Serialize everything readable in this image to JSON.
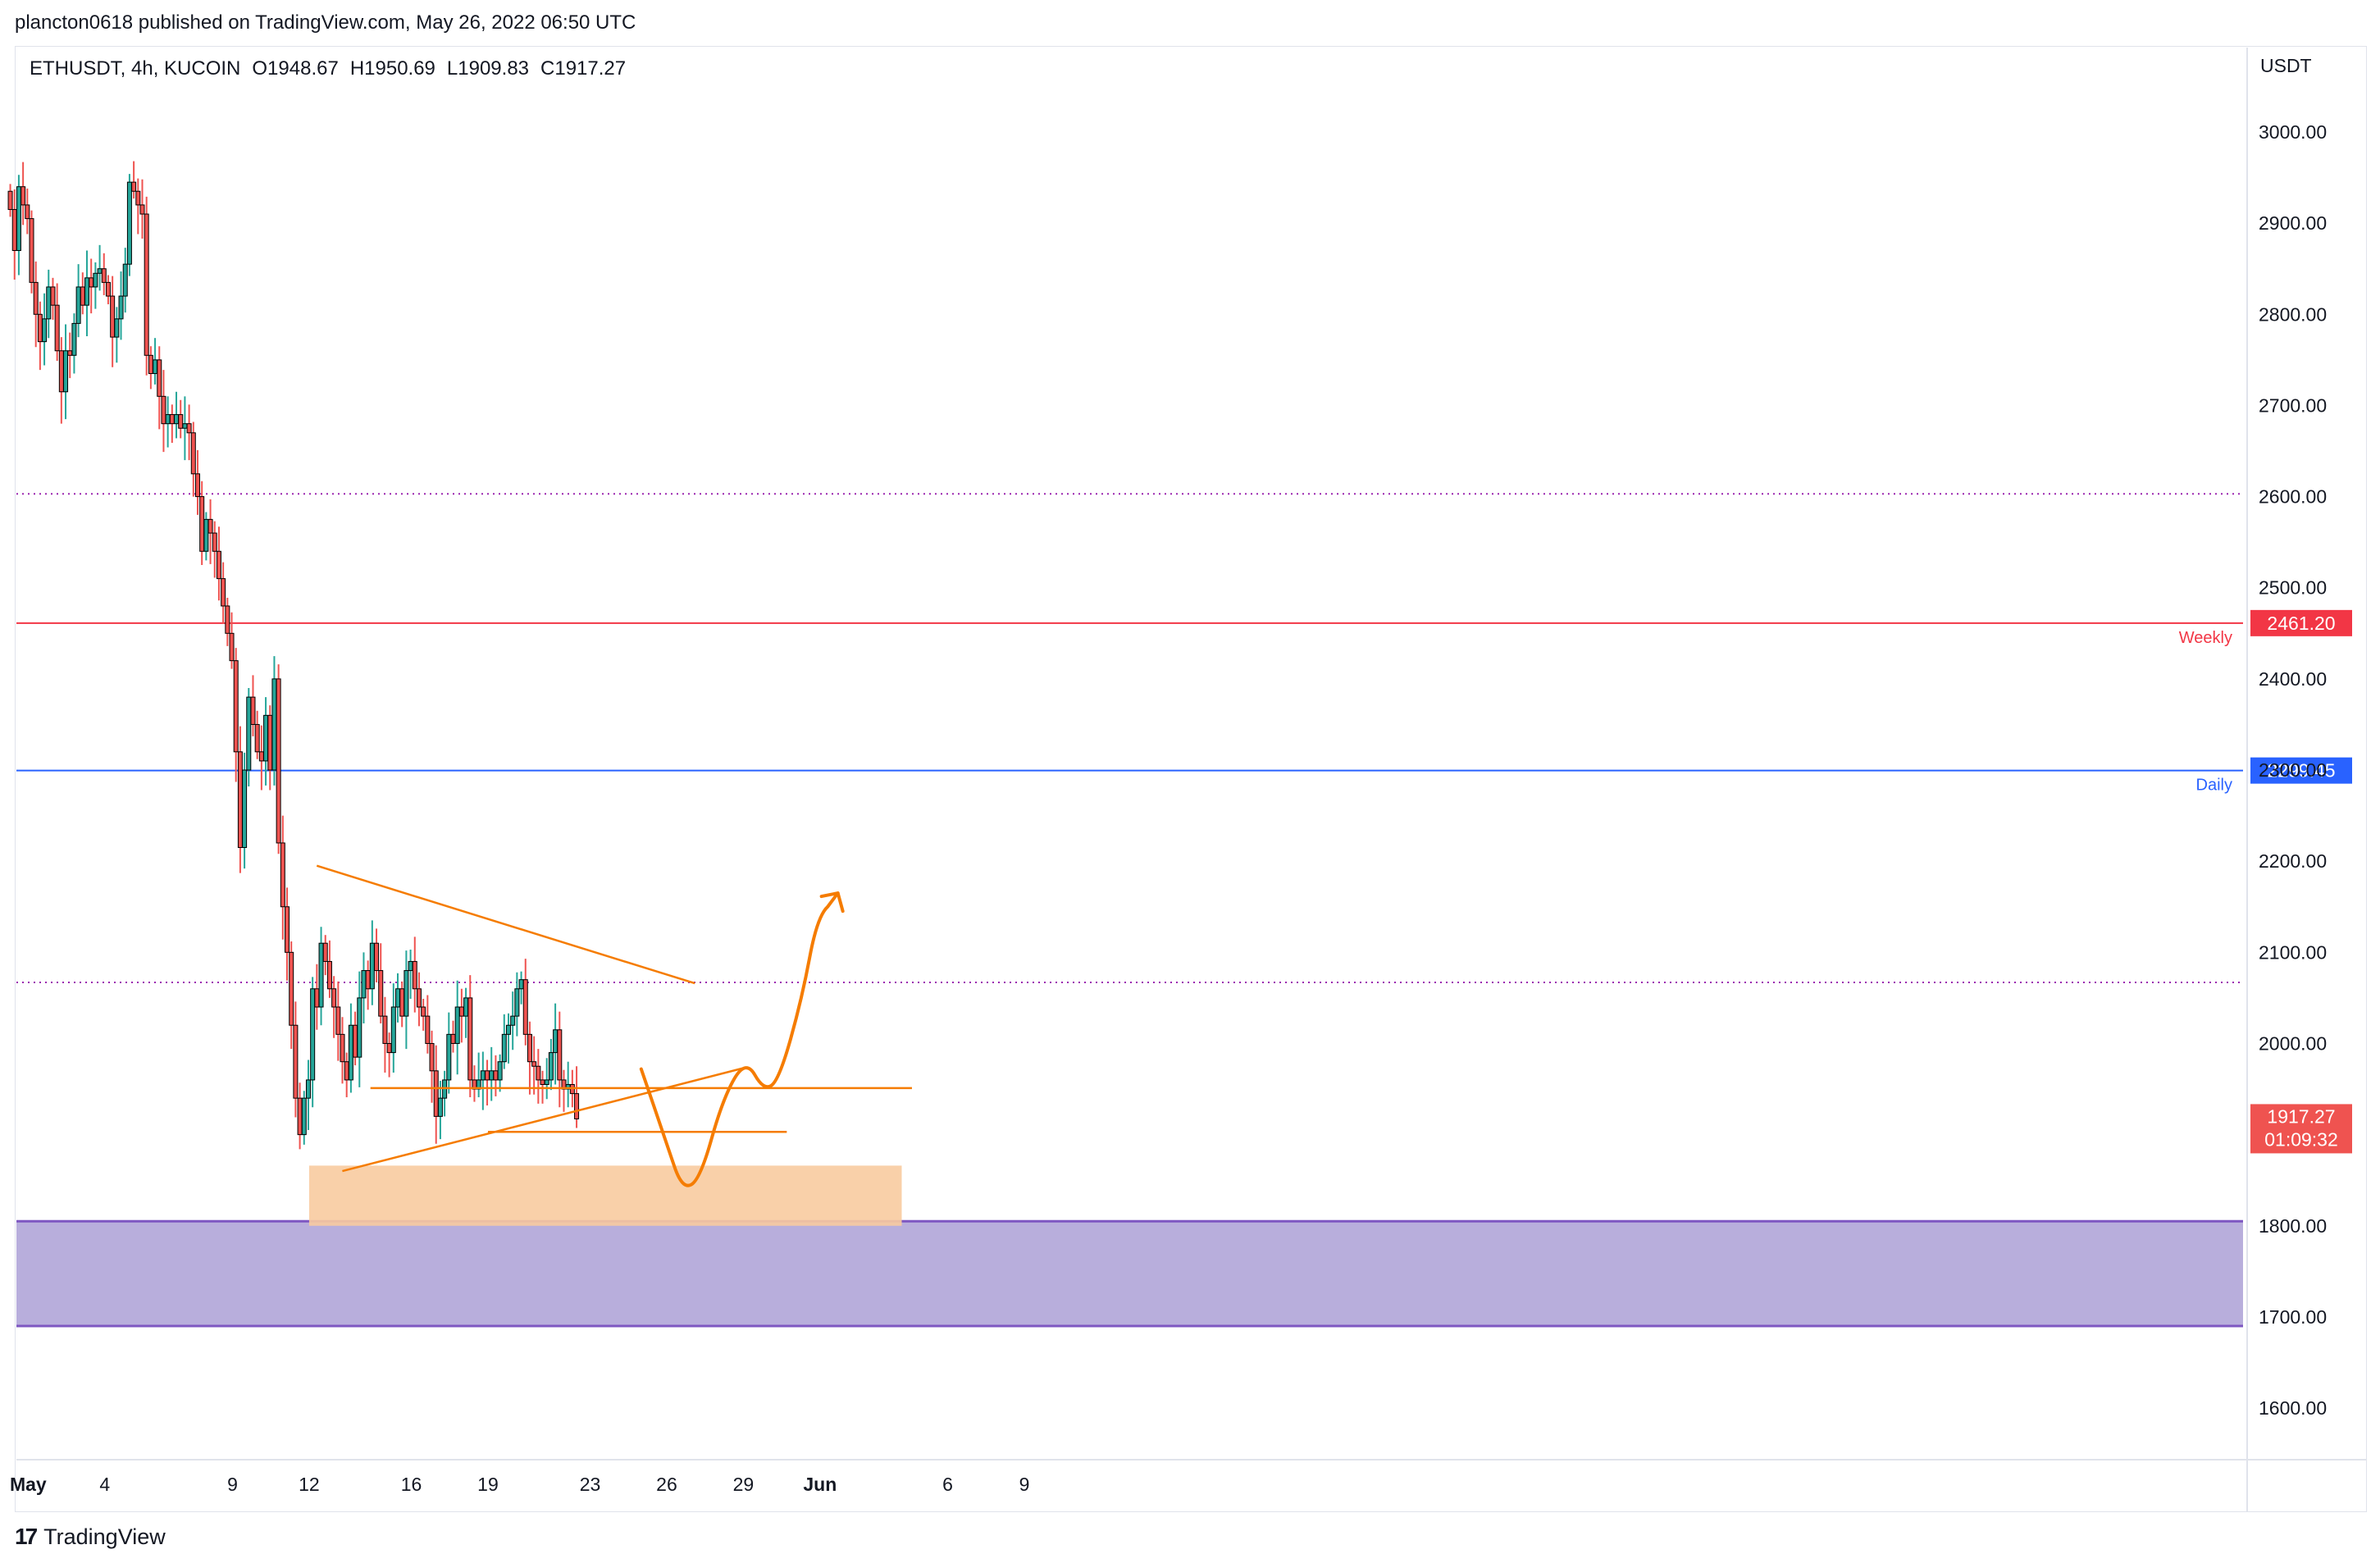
{
  "publisher_line": "plancton0618 published on TradingView.com, May 26, 2022 06:50 UTC",
  "symbol_info": {
    "symbol": "ETHUSDT, 4h, KUCOIN",
    "open": "O1948.67",
    "high": "H1950.69",
    "low": "L1909.83",
    "close": "C1917.27"
  },
  "brand": "TradingView",
  "colors": {
    "up": "#26a69a",
    "down": "#ef5350",
    "candle_border": "#000000",
    "weekly": "#f23645",
    "daily": "#2962ff",
    "annotation": "#f57c00",
    "demand_zone": "#f8cba0",
    "support_zone": "#b0a5d8",
    "dotted_level": "#9c27b0"
  },
  "chart_data": {
    "type": "candlestick",
    "title": "ETHUSDT, 4h, KUCOIN",
    "ylabel": "USDT",
    "ylim": [
      1540,
      3090
    ],
    "y_ticks": [
      "3000.00",
      "2900.00",
      "2800.00",
      "2700.00",
      "2600.00",
      "2500.00",
      "2400.00",
      "2300.00",
      "2200.00",
      "2100.00",
      "2000.00",
      "1900.00",
      "1800.00",
      "1700.00",
      "1600.00"
    ],
    "x_ticks": [
      {
        "label": "May",
        "day": 1
      },
      {
        "label": "4",
        "day": 4
      },
      {
        "label": "9",
        "day": 9
      },
      {
        "label": "12",
        "day": 12
      },
      {
        "label": "16",
        "day": 16
      },
      {
        "label": "19",
        "day": 19
      },
      {
        "label": "23",
        "day": 23
      },
      {
        "label": "26",
        "day": 26
      },
      {
        "label": "29",
        "day": 29
      },
      {
        "label": "Jun",
        "day": 32
      },
      {
        "label": "6",
        "day": 37
      },
      {
        "label": "9",
        "day": 40
      }
    ],
    "start_day": 0.3,
    "candle_step_days": 0.1667,
    "closes": [
      2915,
      2870,
      2940,
      2920,
      2905,
      2835,
      2800,
      2770,
      2795,
      2830,
      2810,
      2760,
      2715,
      2760,
      2755,
      2790,
      2830,
      2810,
      2840,
      2830,
      2845,
      2850,
      2835,
      2820,
      2775,
      2795,
      2820,
      2855,
      2945,
      2935,
      2920,
      2910,
      2755,
      2735,
      2750,
      2710,
      2680,
      2690,
      2680,
      2690,
      2675,
      2680,
      2670,
      2625,
      2600,
      2540,
      2575,
      2560,
      2540,
      2510,
      2480,
      2450,
      2420,
      2320,
      2215,
      2300,
      2380,
      2350,
      2320,
      2310,
      2360,
      2300,
      2400,
      2220,
      2150,
      2100,
      2020,
      1940,
      1900,
      1940,
      1960,
      2060,
      2040,
      2110,
      2090,
      2060,
      2040,
      2010,
      1980,
      1960,
      2020,
      1985,
      2050,
      2080,
      2060,
      2110,
      2080,
      2030,
      2000,
      1990,
      2040,
      2060,
      2030,
      2080,
      2090,
      2060,
      2040,
      2030,
      2000,
      1970,
      1920,
      1940,
      1960,
      2010,
      2000,
      2040,
      2030,
      2050,
      1960,
      1950,
      1960,
      1970,
      1960,
      1970,
      1960,
      1980,
      2010,
      2020,
      2030,
      2060,
      2070,
      2010,
      1980,
      1975,
      1960,
      1955,
      1960,
      1990,
      2015,
      1960,
      1950,
      1955,
      1945,
      1917.27
    ],
    "annotations": {
      "levels": [
        {
          "value": 2461.2,
          "label": "Weekly",
          "price_label": "2461.20",
          "color": "#f23645"
        },
        {
          "value": 2299.45,
          "label": "Daily",
          "price_label": "2299.45",
          "color": "#2962ff"
        },
        {
          "value": 2603,
          "style": "dotted"
        },
        {
          "value": 2067,
          "style": "dotted"
        }
      ],
      "zones": [
        {
          "name": "support-zone",
          "from": 1690,
          "to": 1805,
          "color": "#b0a5d8"
        },
        {
          "name": "demand-zone",
          "from": 1800,
          "to": 1866,
          "start_day": 12.0,
          "end_day": 35.2,
          "color": "#f8cba0"
        }
      ],
      "current_price": {
        "price": "1917.27",
        "countdown": "01:09:32"
      }
    }
  }
}
